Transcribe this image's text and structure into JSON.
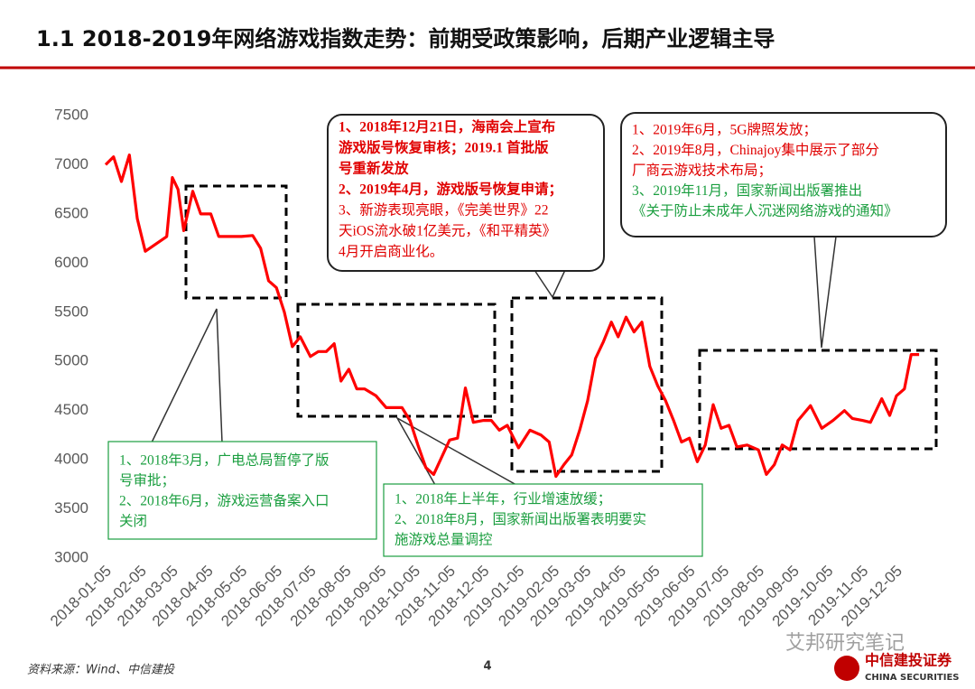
{
  "chart_data": {
    "type": "line",
    "title": "1.1 2018-2019年网络游戏指数走势：前期受政策影响，后期产业逻辑主导",
    "color": "#ff0000",
    "x": [
      "2018-01-05",
      "2018-01-12",
      "2018-01-19",
      "2018-01-26",
      "2018-02-02",
      "2018-02-09",
      "2018-02-28",
      "2018-03-05",
      "2018-03-10",
      "2018-03-15",
      "2018-03-23",
      "2018-03-30",
      "2018-04-08",
      "2018-04-15",
      "2018-05-05",
      "2018-05-15",
      "2018-05-22",
      "2018-05-29",
      "2018-06-05",
      "2018-06-12",
      "2018-06-19",
      "2018-06-26",
      "2018-07-05",
      "2018-07-12",
      "2018-07-19",
      "2018-07-26",
      "2018-08-01",
      "2018-08-08",
      "2018-08-15",
      "2018-08-22",
      "2018-09-01",
      "2018-09-10",
      "2018-09-24",
      "2018-10-01",
      "2018-10-08",
      "2018-10-15",
      "2018-10-22",
      "2018-11-05",
      "2018-11-12",
      "2018-11-19",
      "2018-11-26",
      "2018-12-05",
      "2018-12-12",
      "2018-12-19",
      "2018-12-26",
      "2019-01-05",
      "2019-01-15",
      "2019-01-25",
      "2019-02-01",
      "2019-02-07",
      "2019-02-14",
      "2019-02-21",
      "2019-02-28",
      "2019-03-07",
      "2019-03-14",
      "2019-03-21",
      "2019-03-28",
      "2019-04-03",
      "2019-04-10",
      "2019-04-17",
      "2019-04-24",
      "2019-05-01",
      "2019-05-08",
      "2019-05-15",
      "2019-05-22",
      "2019-05-29",
      "2019-06-05",
      "2019-06-12",
      "2019-06-19",
      "2019-06-26",
      "2019-07-03",
      "2019-07-10",
      "2019-07-17",
      "2019-07-26",
      "2019-08-05",
      "2019-08-12",
      "2019-08-19",
      "2019-08-26",
      "2019-09-02",
      "2019-09-09",
      "2019-09-20",
      "2019-09-30",
      "2019-10-10",
      "2019-10-20",
      "2019-10-27",
      "2019-11-05",
      "2019-11-12",
      "2019-11-22",
      "2019-11-29",
      "2019-12-05",
      "2019-12-12",
      "2019-12-18",
      "2019-12-25"
    ],
    "values": [
      7000,
      7080,
      6830,
      7100,
      6450,
      6120,
      6270,
      6870,
      6750,
      6330,
      6730,
      6500,
      6500,
      6270,
      6270,
      6280,
      6150,
      5820,
      5750,
      5500,
      5150,
      5250,
      5050,
      5100,
      5100,
      5180,
      4800,
      4920,
      4720,
      4720,
      4650,
      4530,
      4530,
      4400,
      4150,
      3920,
      3850,
      4200,
      4220,
      4730,
      4380,
      4400,
      4400,
      4300,
      4350,
      4120,
      4300,
      4250,
      4180,
      3830,
      3950,
      4050,
      4300,
      4600,
      5030,
      5200,
      5400,
      5250,
      5450,
      5300,
      5400,
      4950,
      4750,
      4600,
      4400,
      4180,
      4220,
      3980,
      4150,
      4560,
      4320,
      4350,
      4130,
      4150,
      4100,
      3850,
      3950,
      4150,
      4100,
      4400,
      4550,
      4320,
      4400,
      4500,
      4420,
      4400,
      4380,
      4620,
      4450,
      4650,
      4720,
      5070,
      5070
    ],
    "xlim": [
      "2018-01-05",
      "2019-12-31"
    ],
    "xticks": [
      "2018-01-05",
      "2018-02-05",
      "2018-03-05",
      "2018-04-05",
      "2018-05-05",
      "2018-06-05",
      "2018-07-05",
      "2018-08-05",
      "2018-09-05",
      "2018-10-05",
      "2018-11-05",
      "2018-12-05",
      "2019-01-05",
      "2019-02-05",
      "2019-03-05",
      "2019-04-05",
      "2019-05-05",
      "2019-06-05",
      "2019-07-05",
      "2019-08-05",
      "2019-09-05",
      "2019-10-05",
      "2019-11-05",
      "2019-12-05"
    ],
    "ylim": [
      3000,
      7500
    ],
    "yticks": [
      3000,
      3500,
      4000,
      4500,
      5000,
      5500,
      6000,
      6500,
      7000,
      7500
    ],
    "grid": false,
    "annotations": [
      {
        "border": "#222222",
        "lines": [
          {
            "text": "1、2018年12月21日，海南会上宣布",
            "color": "#e00000",
            "bold": true
          },
          {
            "text": "游戏版号恢复审核；2019.1 首批版",
            "color": "#e00000",
            "bold": true
          },
          {
            "text": "号重新发放",
            "color": "#e00000",
            "bold": true
          },
          {
            "text": "2、2019年4月，游戏版号恢复申请；",
            "color": "#e00000",
            "bold": true
          },
          {
            "text": "3、新游表现亮眼，《完美世界》22",
            "color": "#e00000",
            "bold": false
          },
          {
            "text": "天iOS流水破1亿美元，《和平精英》",
            "color": "#e00000",
            "bold": false
          },
          {
            "text": "4月开启商业化。",
            "color": "#e00000",
            "bold": false
          }
        ]
      },
      {
        "border": "#222222",
        "lines": [
          {
            "text": "1、2019年6月，5G牌照发放；",
            "color": "#e00000",
            "bold": false
          },
          {
            "text": "2、2019年8月，Chinajoy集中展示了部分",
            "color": "#e00000",
            "bold": false
          },
          {
            "text": "厂商云游戏技术布局；",
            "color": "#e00000",
            "bold": false
          },
          {
            "text": "3、2019年11月，国家新闻出版署推出",
            "color": "#1a9e3f",
            "bold": false
          },
          {
            "text": "《关于防止未成年人沉迷网络游戏的通知》",
            "color": "#1a9e3f",
            "bold": false
          }
        ]
      },
      {
        "border": "#1a9e3f",
        "lines": [
          {
            "text": "1、2018年3月，广电总局暂停了版",
            "color": "#1a9e3f",
            "bold": false
          },
          {
            "text": "号审批；",
            "color": "#1a9e3f",
            "bold": false
          },
          {
            "text": "2、2018年6月，游戏运营备案入口",
            "color": "#1a9e3f",
            "bold": false
          },
          {
            "text": "关闭",
            "color": "#1a9e3f",
            "bold": false
          }
        ]
      },
      {
        "border": "#1a9e3f",
        "lines": [
          {
            "text": "1、2018年上半年，行业增速放缓；",
            "color": "#1a9e3f",
            "bold": false
          },
          {
            "text": "2、2018年8月，国家新闻出版署表明要实",
            "color": "#1a9e3f",
            "bold": false
          },
          {
            "text": "施游戏总量调控",
            "color": "#1a9e3f",
            "bold": false
          }
        ]
      }
    ]
  },
  "footer": {
    "source": "资料来源：Wind、中信建投",
    "page": "4",
    "watermark": "艾邦研究笔记",
    "logo_cn": "中信建投证券",
    "logo_en": "CHINA SECURITIES"
  }
}
